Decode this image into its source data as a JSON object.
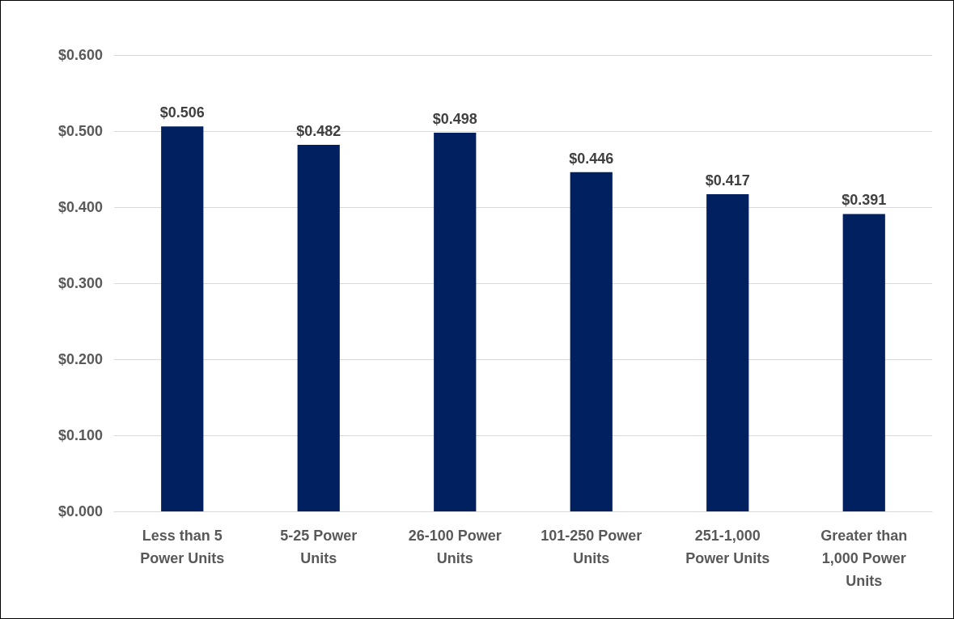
{
  "chart_data": {
    "type": "bar",
    "categories": [
      "Less than 5 Power Units",
      "5-25 Power Units",
      "26-100 Power Units",
      "101-250 Power Units",
      "251-1,000 Power Units",
      "Greater than 1,000 Power Units"
    ],
    "values": [
      0.506,
      0.482,
      0.498,
      0.446,
      0.417,
      0.391
    ],
    "value_labels": [
      "$0.506",
      "$0.482",
      "$0.498",
      "$0.446",
      "$0.417",
      "$0.391"
    ],
    "color": "#002060",
    "ylim": [
      0,
      0.6
    ],
    "yticks": [
      {
        "value": 0,
        "label": "$0.000"
      },
      {
        "value": 0.1,
        "label": "$0.100"
      },
      {
        "value": 0.2,
        "label": "$0.200"
      },
      {
        "value": 0.3,
        "label": "$0.300"
      },
      {
        "value": 0.4,
        "label": "$0.400"
      },
      {
        "value": 0.5,
        "label": "$0.500"
      },
      {
        "value": 0.6,
        "label": "$0.600"
      }
    ],
    "grid": "y"
  }
}
